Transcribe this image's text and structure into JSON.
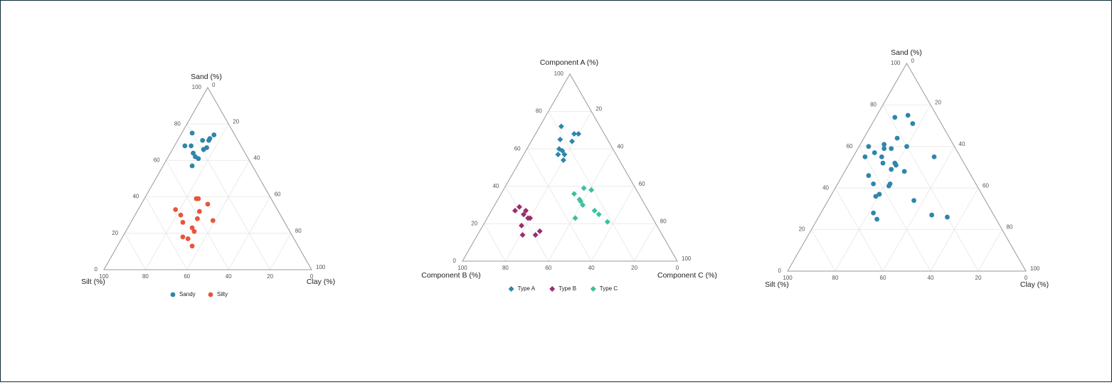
{
  "chart_data": [
    {
      "type": "ternary",
      "axis_labels": {
        "a": "Sand (%)",
        "b": "Silt (%)",
        "c": "Clay (%)"
      },
      "aticks": [
        0,
        20,
        40,
        60,
        80,
        100
      ],
      "bticks": [
        0,
        20,
        40,
        60,
        80,
        100
      ],
      "cticks": [
        0,
        20,
        40,
        60,
        80,
        100
      ],
      "grid": true,
      "legend": "bottom",
      "series": [
        {
          "name": "Sandy",
          "color": "#2e86ab",
          "marker": "circle",
          "a": [
            75,
            68,
            68,
            64,
            62,
            61,
            57,
            71,
            72,
            74,
            66,
            67,
            66,
            71
          ],
          "b": [
            20,
            27,
            24,
            25,
            25,
            24,
            29,
            17,
            13,
            10,
            19,
            17,
            19,
            14
          ],
          "c": [
            5,
            5,
            8,
            11,
            13,
            15,
            14,
            12,
            15,
            16,
            15,
            16,
            15,
            15
          ]
        },
        {
          "name": "Silty",
          "color": "#e8553a",
          "marker": "circle",
          "a": [
            33,
            30,
            26,
            39,
            39,
            36,
            32,
            28,
            27,
            23,
            21,
            18,
            17,
            13
          ],
          "b": [
            49,
            48,
            49,
            36,
            35,
            32,
            38,
            41,
            34,
            46,
            46,
            53,
            51,
            51
          ],
          "c": [
            18,
            22,
            25,
            25,
            26,
            32,
            30,
            31,
            39,
            31,
            33,
            29,
            32,
            36
          ]
        }
      ]
    },
    {
      "type": "ternary",
      "axis_labels": {
        "a": "Component A (%)",
        "b": "Component B (%)",
        "c": "Component C (%)"
      },
      "aticks": [
        0,
        20,
        40,
        60,
        80,
        100
      ],
      "bticks": [
        0,
        20,
        40,
        60,
        80,
        100
      ],
      "cticks": [
        20,
        40,
        60,
        80,
        100
      ],
      "grid": true,
      "legend": "bottom",
      "series": [
        {
          "name": "Type A",
          "color": "#2e86ab",
          "marker": "diamond",
          "a": [
            72,
            68,
            68,
            65,
            64,
            60,
            57,
            57,
            54,
            59
          ],
          "b": [
            18,
            14,
            12,
            22,
            17,
            25,
            27,
            24,
            26,
            24
          ],
          "c": [
            10,
            18,
            20,
            13,
            19,
            15,
            16,
            19,
            20,
            17
          ]
        },
        {
          "name": "Type B",
          "color": "#9b2c6f",
          "marker": "diamond",
          "a": [
            27,
            29,
            27,
            25,
            23,
            23,
            19,
            14,
            14,
            16
          ],
          "b": [
            62,
            59,
            57,
            59,
            57,
            58,
            63,
            65,
            59,
            56
          ],
          "c": [
            11,
            12,
            16,
            16,
            20,
            19,
            18,
            21,
            27,
            28
          ]
        },
        {
          "name": "Type C",
          "color": "#3dbfa0",
          "marker": "diamond",
          "a": [
            39,
            38,
            36,
            33,
            32,
            30,
            27,
            25,
            23,
            21
          ],
          "b": [
            24,
            21,
            30,
            29,
            29,
            29,
            25,
            24,
            36,
            22
          ],
          "c": [
            37,
            41,
            34,
            38,
            39,
            41,
            48,
            51,
            41,
            57
          ]
        }
      ]
    },
    {
      "type": "ternary",
      "axis_labels": {
        "a": "Sand (%)",
        "b": "Silt (%)",
        "c": "Clay (%)"
      },
      "aticks": [
        0,
        20,
        40,
        60,
        80,
        100
      ],
      "bticks": [
        0,
        20,
        40,
        60,
        80,
        100
      ],
      "cticks": [
        0,
        20,
        40,
        60,
        80,
        100
      ],
      "grid": true,
      "legend": "none",
      "series": [
        {
          "color": "#2e86ab",
          "marker": "circle",
          "a": [
            74,
            75,
            71,
            64,
            60,
            61,
            59,
            59,
            57,
            55,
            55,
            60,
            55,
            52,
            52,
            51,
            49,
            48,
            46,
            42,
            42,
            41,
            37,
            36,
            34,
            28,
            25,
            27,
            26
          ],
          "b": [
            18,
            12,
            12,
            22,
            36,
            29,
            30,
            27,
            35,
            40,
            33,
            20,
            11,
            34,
            29,
            29,
            32,
            27,
            43,
            43,
            36,
            37,
            43,
            45,
            30,
            50,
            50,
            26,
            20
          ],
          "c": [
            8,
            13,
            17,
            14,
            4,
            10,
            11,
            14,
            8,
            5,
            12,
            20,
            34,
            14,
            19,
            20,
            19,
            25,
            11,
            15,
            22,
            22,
            20,
            19,
            36,
            22,
            25,
            47,
            54
          ]
        }
      ]
    }
  ]
}
